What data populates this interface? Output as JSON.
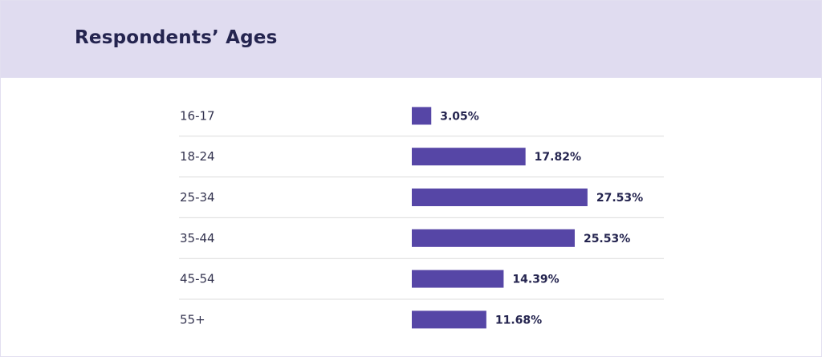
{
  "title": "Respondents’ Ages",
  "colors": {
    "header_bg": "#e0dcf0",
    "bar": "#5646a6",
    "divider": "#dcdcdc",
    "title_text": "#24244f"
  },
  "chart_data": {
    "type": "bar",
    "orientation": "horizontal",
    "title": "Respondents’ Ages",
    "categories": [
      "16-17",
      "18-24",
      "25-34",
      "35-44",
      "45-54",
      "55+"
    ],
    "values": [
      3.05,
      17.82,
      27.53,
      25.53,
      14.39,
      11.68
    ],
    "value_labels": [
      "3.05%",
      "17.82%",
      "27.53%",
      "25.53%",
      "14.39%",
      "11.68%"
    ],
    "unit": "%",
    "grid": false
  }
}
